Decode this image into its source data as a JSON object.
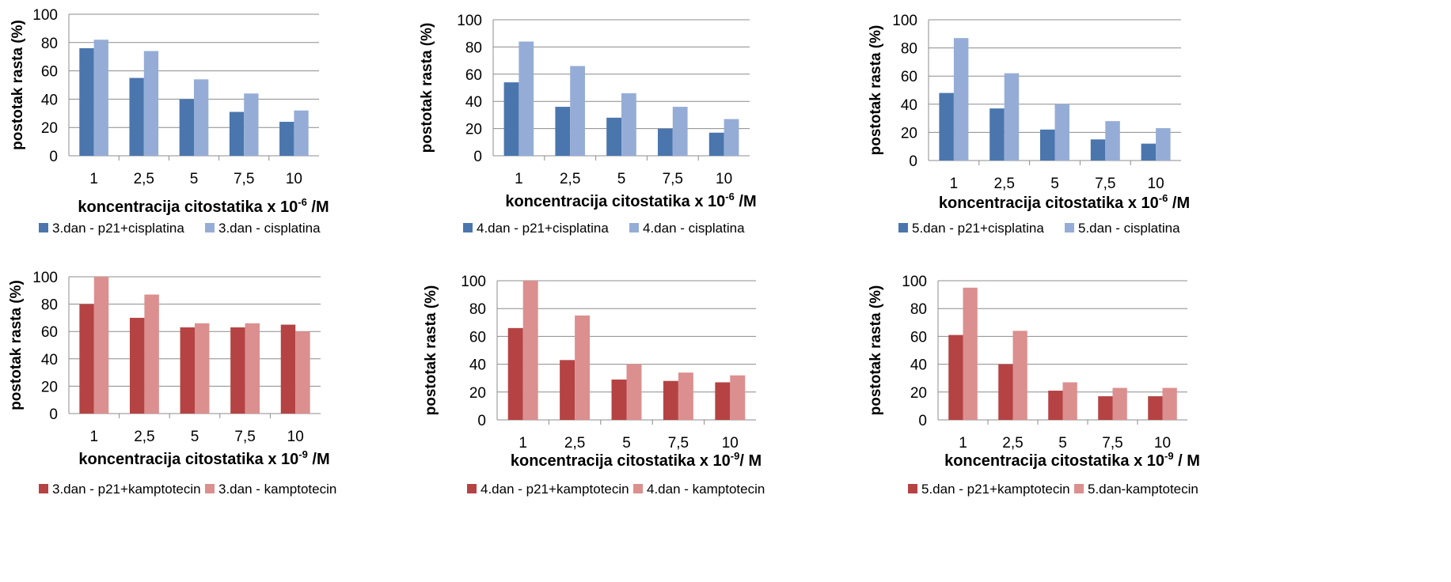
{
  "colors": {
    "cis_dark": "#4a76ad",
    "cis_light": "#95add6",
    "kam_dark": "#b54343",
    "kam_light": "#dc8f8f",
    "grid": "#8c8c8c",
    "axis": "#8c8c8c"
  },
  "chart_data": [
    {
      "type": "bar",
      "categories": [
        "1",
        "2,5",
        "5",
        "7,5",
        "10"
      ],
      "series": [
        {
          "name": "3.dan - p21+cisplatina",
          "values": [
            76,
            55,
            40,
            31,
            24
          ],
          "color": "#4a76ad"
        },
        {
          "name": "3.dan - cisplatina",
          "values": [
            82,
            74,
            54,
            44,
            32
          ],
          "color": "#95add6"
        }
      ],
      "ylabel": "postotak rasta (%)",
      "xlabel": {
        "pre": "koncentracija citostatika x 10",
        "sup": "-6",
        "post": " /M"
      },
      "yticks": [
        0,
        20,
        40,
        60,
        80,
        100
      ],
      "ylim": [
        0,
        100
      ],
      "grid": true,
      "legend": "bottom"
    },
    {
      "type": "bar",
      "categories": [
        "1",
        "2,5",
        "5",
        "7,5",
        "10"
      ],
      "series": [
        {
          "name": "4.dan - p21+cisplatina",
          "values": [
            54,
            36,
            28,
            20,
            17
          ],
          "color": "#4a76ad"
        },
        {
          "name": "4.dan - cisplatina",
          "values": [
            84,
            66,
            46,
            36,
            27
          ],
          "color": "#95add6"
        }
      ],
      "ylabel": "postotak rasta (%)",
      "xlabel": {
        "pre": "koncentracija citostatika x 10",
        "sup": "-6",
        "post": " /M"
      },
      "yticks": [
        0,
        20,
        40,
        60,
        80,
        100
      ],
      "ylim": [
        0,
        100
      ],
      "grid": true,
      "legend": "bottom"
    },
    {
      "type": "bar",
      "categories": [
        "1",
        "2,5",
        "5",
        "7,5",
        "10"
      ],
      "series": [
        {
          "name": "5.dan - p21+cisplatina",
          "values": [
            48,
            37,
            22,
            15,
            12
          ],
          "color": "#4a76ad"
        },
        {
          "name": "5.dan - cisplatina",
          "values": [
            87,
            62,
            40,
            28,
            23
          ],
          "color": "#95add6"
        }
      ],
      "ylabel": "postotak rasta (%)",
      "xlabel": {
        "pre": "koncentracija citostatika x 10",
        "sup": "-6",
        "post": " /M"
      },
      "yticks": [
        0,
        20,
        40,
        60,
        80,
        100
      ],
      "ylim": [
        0,
        100
      ],
      "grid": true,
      "legend": "bottom"
    },
    {
      "type": "bar",
      "categories": [
        "1",
        "2,5",
        "5",
        "7,5",
        "10"
      ],
      "series": [
        {
          "name": "3.dan - p21+kamptotecin",
          "values": [
            80,
            70,
            63,
            63,
            65
          ],
          "color": "#b54343"
        },
        {
          "name": "3.dan - kamptotecin",
          "values": [
            100,
            87,
            66,
            66,
            60
          ],
          "color": "#dc8f8f"
        }
      ],
      "ylabel": "postotak rasta (%)",
      "xlabel": {
        "pre": "koncentracija citostatika x 10",
        "sup": "-9",
        "post": " /M"
      },
      "yticks": [
        0,
        20,
        40,
        60,
        80,
        100
      ],
      "ylim": [
        0,
        100
      ],
      "grid": true,
      "legend": "bottom"
    },
    {
      "type": "bar",
      "categories": [
        "1",
        "2,5",
        "5",
        "7,5",
        "10"
      ],
      "series": [
        {
          "name": "4.dan - p21+kamptotecin",
          "values": [
            66,
            43,
            29,
            28,
            27
          ],
          "color": "#b54343"
        },
        {
          "name": "4.dan - kamptotecin",
          "values": [
            100,
            75,
            40,
            34,
            32
          ],
          "color": "#dc8f8f"
        }
      ],
      "ylabel": "postotak rasta (%)",
      "xlabel": {
        "pre": "koncentracija citostatika x 10",
        "sup": "-9",
        "post": "/ M"
      },
      "yticks": [
        0,
        20,
        40,
        60,
        80,
        100
      ],
      "ylim": [
        0,
        100
      ],
      "grid": true,
      "legend": "bottom"
    },
    {
      "type": "bar",
      "categories": [
        "1",
        "2,5",
        "5",
        "7,5",
        "10"
      ],
      "series": [
        {
          "name": "5.dan - p21+kamptotecin",
          "values": [
            61,
            40,
            21,
            17,
            17
          ],
          "color": "#b54343"
        },
        {
          "name": "5.dan-kamptotecin",
          "values": [
            95,
            64,
            27,
            23,
            23
          ],
          "color": "#dc8f8f"
        }
      ],
      "ylabel": "postotak rasta (%)",
      "xlabel": {
        "pre": "koncentracija citostatika x 10",
        "sup": "-9",
        "post": " / M"
      },
      "yticks": [
        0,
        20,
        40,
        60,
        80,
        100
      ],
      "ylim": [
        0,
        100
      ],
      "grid": true,
      "legend": "bottom"
    }
  ]
}
